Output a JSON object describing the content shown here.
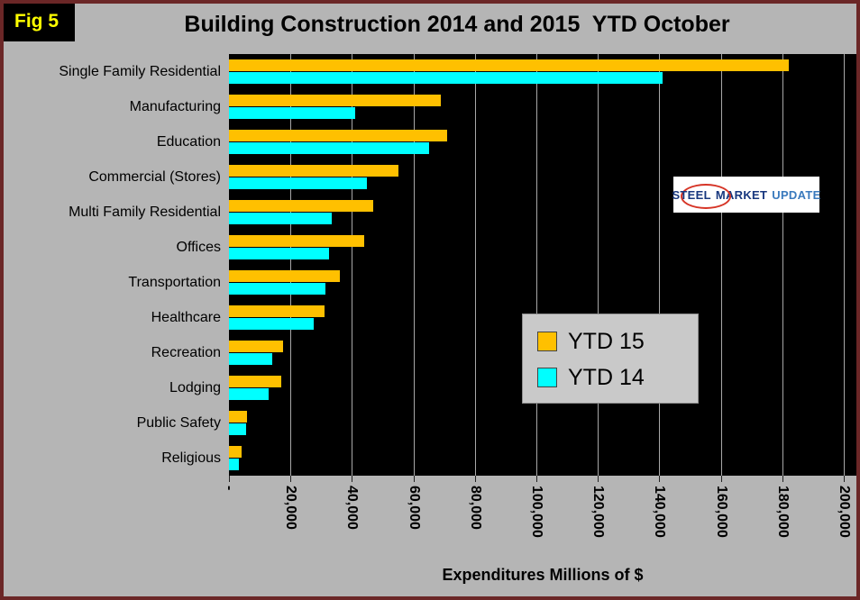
{
  "figure": {
    "label": "Fig 5"
  },
  "logo": {
    "steel": "STEEL",
    "market": "MARKET",
    "update": "UPDATE"
  },
  "colors": {
    "background": "#b5b5b5",
    "plot_background": "#000000",
    "frame_border": "#6b2727",
    "fig_label_text": "#ffff00",
    "gridline": "#a8a8a8",
    "ytd15_bar": "#FFC000",
    "ytd14_bar": "#00FFFF",
    "logo_blue": "#17377e",
    "logo_red": "#d63426"
  },
  "chart_data": {
    "type": "bar",
    "orientation": "horizontal",
    "title": "Building Construction 2014 and 2015  YTD October",
    "xlabel": "Expenditures Millions of $",
    "xlim": [
      0,
      200000
    ],
    "grid": true,
    "plot_bg": "#000000",
    "legend_position": "inside-right",
    "categories": [
      "Single Family Residential",
      "Manufacturing",
      "Education",
      "Commercial (Stores)",
      "Multi Family Residential",
      "Offices",
      "Transportation",
      "Healthcare",
      "Recreation",
      "Lodging",
      "Public Safety",
      "Religious"
    ],
    "series": [
      {
        "name": "YTD 15",
        "color": "#FFC000",
        "values": [
          182000,
          69000,
          71000,
          55000,
          47000,
          44000,
          36000,
          31000,
          17500,
          17000,
          6000,
          4000
        ]
      },
      {
        "name": "YTD 14",
        "color": "#00FFFF",
        "values": [
          141000,
          41000,
          65000,
          45000,
          33500,
          32500,
          31500,
          27500,
          14000,
          13000,
          5500,
          3200
        ]
      }
    ],
    "xticks": [
      {
        "value": 0,
        "label": "-"
      },
      {
        "value": 20000,
        "label": "20,000"
      },
      {
        "value": 40000,
        "label": "40,000"
      },
      {
        "value": 60000,
        "label": "60,000"
      },
      {
        "value": 80000,
        "label": "80,000"
      },
      {
        "value": 100000,
        "label": "100,000"
      },
      {
        "value": 120000,
        "label": "120,000"
      },
      {
        "value": 140000,
        "label": "140,000"
      },
      {
        "value": 160000,
        "label": "160,000"
      },
      {
        "value": 180000,
        "label": "180,000"
      },
      {
        "value": 200000,
        "label": "200,000"
      }
    ]
  }
}
